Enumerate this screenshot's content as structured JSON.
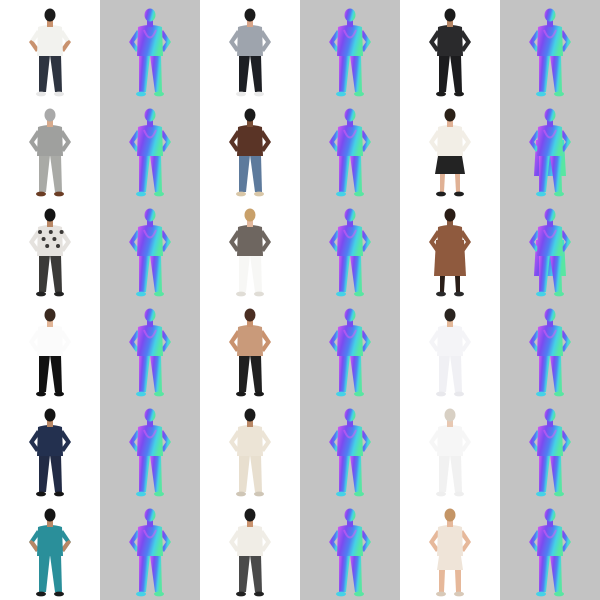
{
  "colors": {
    "photo_bg": "#ffffff",
    "normal_bg": "#c3c3c3",
    "normal_purple": "#7a4cf0",
    "normal_blue": "#4f7ef2",
    "normal_cyan": "#45d2e6",
    "normal_green": "#58e6a2",
    "normal_magenta": "#d85cf3",
    "skin": "#c9926e",
    "skin_dark": "#6b4430",
    "shoe": "#2a2a2a"
  },
  "grid": {
    "rows": 6,
    "pairs_per_row": 3,
    "people": [
      [
        {
          "hair": "#1b1b1b",
          "skin": "#c9926e",
          "top": "#f2f2ee",
          "pants": "#2e3440",
          "shoes": "#e6e6e6",
          "sleeve": "short",
          "bottom": "pants"
        },
        {
          "hair": "#1b1b1b",
          "skin": "#d8a488",
          "top": "#9ea4ad",
          "pants": "#1d1f24",
          "shoes": "#e9e9e9",
          "sleeve": "long",
          "bottom": "pants"
        },
        {
          "hair": "#1a1a1a",
          "skin": "#b58463",
          "top": "#2a2a2c",
          "pants": "#1c1c1e",
          "shoes": "#1c1c1c",
          "sleeve": "long",
          "bottom": "pants"
        }
      ],
      [
        {
          "hair": "#a9a9a9",
          "skin": "#d8aa8c",
          "top": "#9fa09e",
          "pants": "#a9aaa6",
          "shoes": "#6b3d24",
          "sleeve": "long",
          "bottom": "pants"
        },
        {
          "hair": "#1a1a1a",
          "skin": "#7a4e36",
          "top": "#5a3426",
          "pants": "#5d7a9c",
          "shoes": "#d9c7a8",
          "sleeve": "long",
          "bottom": "pants"
        },
        {
          "hair": "#2b2118",
          "skin": "#e0b195",
          "top": "#f2eee6",
          "pants": "#232323",
          "shoes": "#1f1f1f",
          "sleeve": "long",
          "bottom": "skirt"
        }
      ],
      [
        {
          "hair": "#141414",
          "skin": "#b98765",
          "top": "#e5e2de",
          "pants": "#3b3a38",
          "shoes": "#222222",
          "sleeve": "long",
          "bottom": "pants",
          "pattern": true
        },
        {
          "hair": "#c8a06a",
          "skin": "#e2b79c",
          "top": "#6e6660",
          "pants": "#f7f7f5",
          "shoes": "#e0ddd6",
          "sleeve": "long",
          "bottom": "pants"
        },
        {
          "hair": "#2a1d16",
          "skin": "#8a5a40",
          "top": "#8f5a3e",
          "pants": "#8f5a3e",
          "shoes": "#2a2a2a",
          "sleeve": "long",
          "bottom": "coat"
        }
      ],
      [
        {
          "hair": "#3a2a20",
          "skin": "#e1b597",
          "top": "#fbfbfb",
          "pants": "#121212",
          "shoes": "#101010",
          "sleeve": "long",
          "bottom": "pants"
        },
        {
          "hair": "#4a2e22",
          "skin": "#c9926e",
          "top": "#c99a7a",
          "pants": "#202020",
          "shoes": "#1a1a1a",
          "sleeve": "none",
          "bottom": "pants"
        },
        {
          "hair": "#2a2420",
          "skin": "#e3b899",
          "top": "#f4f4f7",
          "pants": "#f0f0f4",
          "shoes": "#e8e8ec",
          "sleeve": "long",
          "bottom": "pants"
        }
      ],
      [
        {
          "hair": "#141414",
          "skin": "#b98765",
          "top": "#23304f",
          "pants": "#222b45",
          "shoes": "#151515",
          "sleeve": "long",
          "bottom": "pants"
        },
        {
          "hair": "#1a1a1a",
          "skin": "#b98765",
          "top": "#ece4d6",
          "pants": "#e8dfcf",
          "shoes": "#cfc6b6",
          "sleeve": "long",
          "bottom": "pants"
        },
        {
          "hair": "#d8d0c4",
          "skin": "#e8c8b2",
          "top": "#f6f6f6",
          "pants": "#f1f1f1",
          "shoes": "#eeeeee",
          "sleeve": "long",
          "bottom": "pants"
        }
      ],
      [
        {
          "hair": "#151515",
          "skin": "#b98765",
          "top": "#2a8f9a",
          "pants": "#2a8f9a",
          "shoes": "#1a1a1a",
          "sleeve": "short",
          "bottom": "pants"
        },
        {
          "hair": "#1a1a1a",
          "skin": "#c9926e",
          "top": "#f0ede6",
          "pants": "#4a4a4a",
          "shoes": "#222222",
          "sleeve": "long",
          "bottom": "pants"
        },
        {
          "hair": "#c49566",
          "skin": "#e6b89a",
          "top": "#efe4d8",
          "pants": "#efe4d8",
          "shoes": "#d8c9b8",
          "sleeve": "none",
          "bottom": "shorts"
        }
      ]
    ]
  }
}
